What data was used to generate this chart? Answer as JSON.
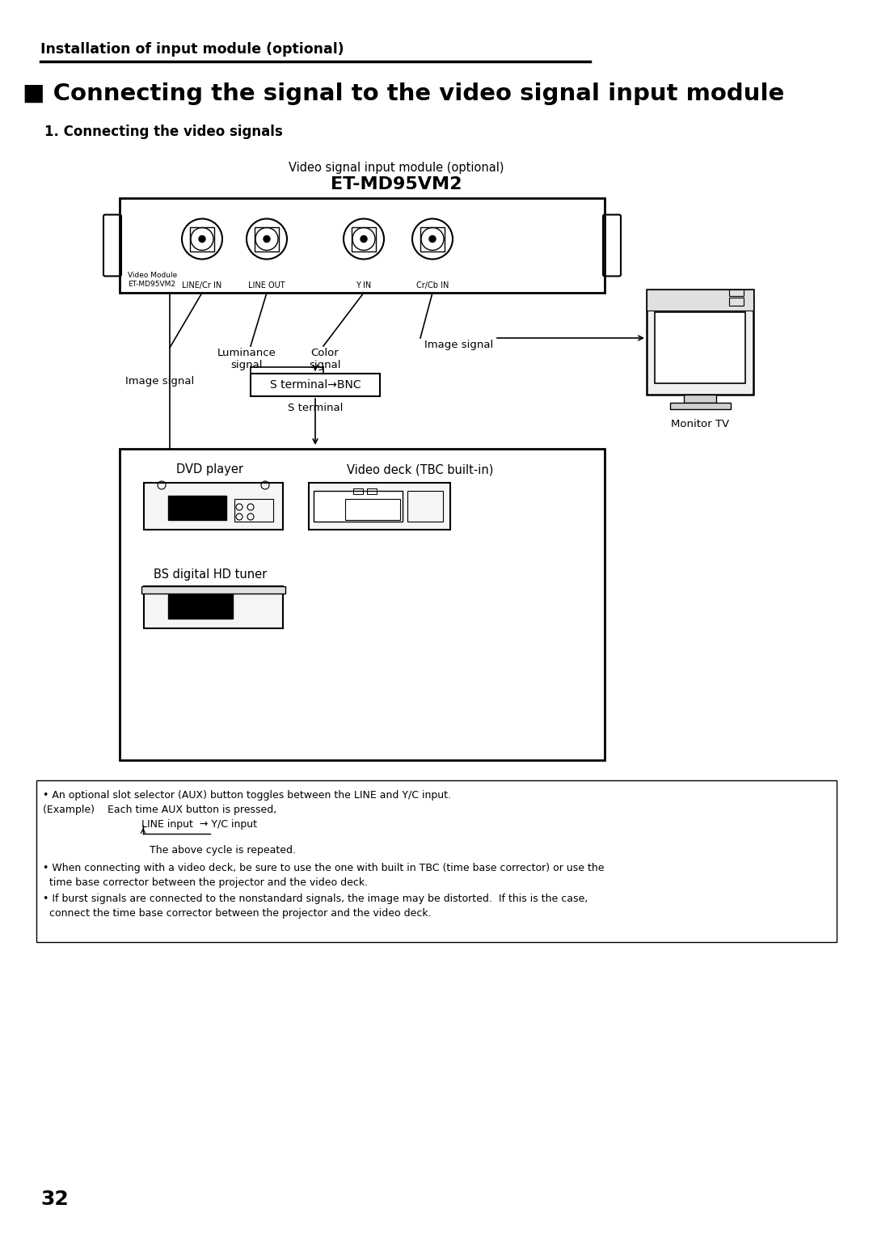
{
  "bg_color": "#ffffff",
  "header_line_text": "Installation of input module (optional)",
  "title": "■ Connecting the signal to the video signal input module",
  "subtitle": "1. Connecting the video signals",
  "module_label_top": "Video signal input module (optional)",
  "module_label_model": "ET-MD95VM2",
  "connector_labels": [
    "LINE/Cr IN",
    "LINE OUT",
    "Y IN",
    "Cr/Cb IN"
  ],
  "video_module_label1": "Video Module",
  "video_module_label2": "ET-MD95VM2",
  "lum_signal": "Luminance\nsignal",
  "col_signal": "Color\nsignal",
  "img_signal_right": "Image signal",
  "img_signal_left": "Image signal",
  "s_terminal_box": "S terminal→BNC",
  "s_terminal_label": "S terminal",
  "monitor_label": "Monitor TV",
  "dvd_label": "DVD player",
  "video_deck_label": "Video deck (TBC built-in)",
  "bs_label": "BS digital HD tuner",
  "page_number": "32",
  "note_lines": [
    "• An optional slot selector (AUX) button toggles between the LINE and Y/C input.",
    "(Example)    Each time AUX button is pressed,",
    "LINE input  → Y/C input",
    "↑_________|",
    "The above cycle is repeated.",
    "• When connecting with a video deck, be sure to use the one with built in TBC (time base corrector) or use the",
    "  time base corrector between the projector and the video deck.",
    "• If burst signals are connected to the nonstandard signals, the image may be distorted.  If this is the case,",
    "  connect the time base corrector between the projector and the video deck."
  ]
}
